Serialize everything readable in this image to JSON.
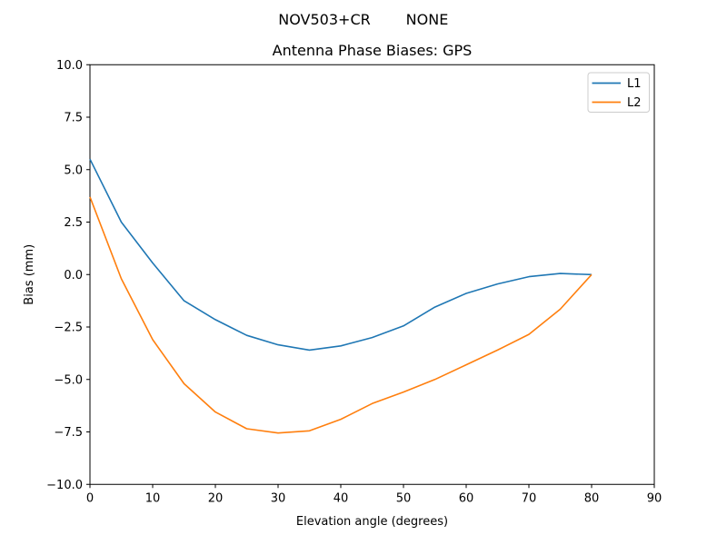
{
  "figure": {
    "suptitle_left": "NOV503+CR",
    "suptitle_right": "NONE"
  },
  "chart_data": {
    "type": "line",
    "title": "Antenna Phase Biases: GPS",
    "xlabel": "Elevation angle (degrees)",
    "ylabel": "Bias (mm)",
    "xlim": [
      0,
      90
    ],
    "ylim": [
      -10,
      10
    ],
    "grid": false,
    "x_ticks": [
      0,
      10,
      20,
      30,
      40,
      50,
      60,
      70,
      80,
      90
    ],
    "x_tick_labels": [
      "0",
      "10",
      "20",
      "30",
      "40",
      "50",
      "60",
      "70",
      "80",
      "90"
    ],
    "y_ticks": [
      10,
      7.5,
      5,
      2.5,
      0,
      -2.5,
      -5,
      -7.5,
      -10
    ],
    "y_tick_labels": [
      "10.0",
      "7.5",
      "5.0",
      "2.5",
      "0.0",
      "−2.5",
      "−5.0",
      "−7.5",
      "−10.0"
    ],
    "x": [
      0,
      5,
      10,
      15,
      20,
      25,
      30,
      35,
      40,
      45,
      50,
      55,
      60,
      65,
      70,
      75,
      80
    ],
    "series": [
      {
        "name": "L1",
        "color": "#1f77b4",
        "values": [
          5.5,
          2.5,
          0.55,
          -1.25,
          -2.15,
          -2.9,
          -3.35,
          -3.6,
          -3.4,
          -3.0,
          -2.45,
          -1.55,
          -0.9,
          -0.45,
          -0.1,
          0.05,
          0.0
        ]
      },
      {
        "name": "L2",
        "color": "#ff7f0e",
        "values": [
          3.7,
          -0.2,
          -3.1,
          -5.2,
          -6.55,
          -7.35,
          -7.55,
          -7.45,
          -6.9,
          -6.15,
          -5.6,
          -5.0,
          -4.3,
          -3.6,
          -2.85,
          -1.65,
          0.0
        ]
      }
    ],
    "legend": {
      "position": "upper right",
      "entries": [
        {
          "label": "L1",
          "color": "#1f77b4"
        },
        {
          "label": "L2",
          "color": "#ff7f0e"
        }
      ]
    }
  }
}
